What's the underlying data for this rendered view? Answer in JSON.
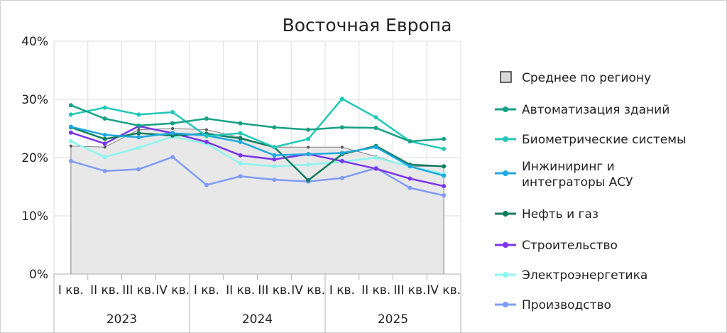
{
  "chart_data": {
    "type": "line",
    "title": "Восточная Европа",
    "xlabel": "",
    "ylabel": "",
    "ylim": [
      0,
      40
    ],
    "y_ticks": [
      "0%",
      "10%",
      "20%",
      "30%",
      "40%"
    ],
    "grid": true,
    "legend_position": "right",
    "categories": [
      "I кв.",
      "II кв.",
      "III кв.",
      "IV кв.",
      "I кв.",
      "II кв.",
      "III кв.",
      "IV кв.",
      "I кв.",
      "II кв.",
      "III кв.",
      "IV кв."
    ],
    "years": [
      "2023",
      "2024",
      "2025"
    ],
    "series": [
      {
        "name": "Среднее по региону",
        "style": "area",
        "color": "#808080",
        "fill": "#e8e8e8",
        "values": [
          22.0,
          21.8,
          24.8,
          25.0,
          24.8,
          23.5,
          21.8,
          21.8,
          21.8,
          20.2,
          18.5,
          18.5
        ]
      },
      {
        "name": "Автоматизация зданий",
        "color": "#16a085",
        "values": [
          29.0,
          26.7,
          25.5,
          25.9,
          26.7,
          25.9,
          25.2,
          24.8,
          25.2,
          25.1,
          22.8,
          23.2
        ]
      },
      {
        "name": "Биометрические системы",
        "color": "#22c7b8",
        "values": [
          27.4,
          28.6,
          27.4,
          27.8,
          23.7,
          24.2,
          21.8,
          23.2,
          30.1,
          26.9,
          22.8,
          21.5
        ]
      },
      {
        "name": "Инжиниринг и интеграторы АСУ",
        "color": "#1fa8e0",
        "values": [
          25.3,
          23.9,
          23.5,
          24.2,
          23.8,
          22.7,
          20.4,
          20.6,
          20.8,
          21.8,
          18.5,
          16.9
        ]
      },
      {
        "name": "Нефть и газ",
        "color": "#0f7d5f",
        "values": [
          25.2,
          23.2,
          24.2,
          23.8,
          24.1,
          23.3,
          21.8,
          16.1,
          20.6,
          22.0,
          18.8,
          18.5
        ]
      },
      {
        "name": "Строительство",
        "color": "#7a35e8",
        "values": [
          24.3,
          22.4,
          25.4,
          24.2,
          22.7,
          20.4,
          19.7,
          20.6,
          19.4,
          18.1,
          16.4,
          15.1
        ]
      },
      {
        "name": "Электроэнергетика",
        "color": "#8ef5ee",
        "values": [
          22.8,
          20.1,
          21.7,
          23.6,
          22.4,
          19.0,
          18.5,
          18.8,
          19.3,
          20.0,
          18.5,
          17.2
        ]
      },
      {
        "name": "Производство",
        "color": "#7f9cf5",
        "values": [
          19.4,
          17.7,
          18.0,
          20.1,
          15.3,
          16.8,
          16.2,
          15.9,
          16.5,
          18.2,
          14.8,
          13.5
        ]
      }
    ]
  }
}
